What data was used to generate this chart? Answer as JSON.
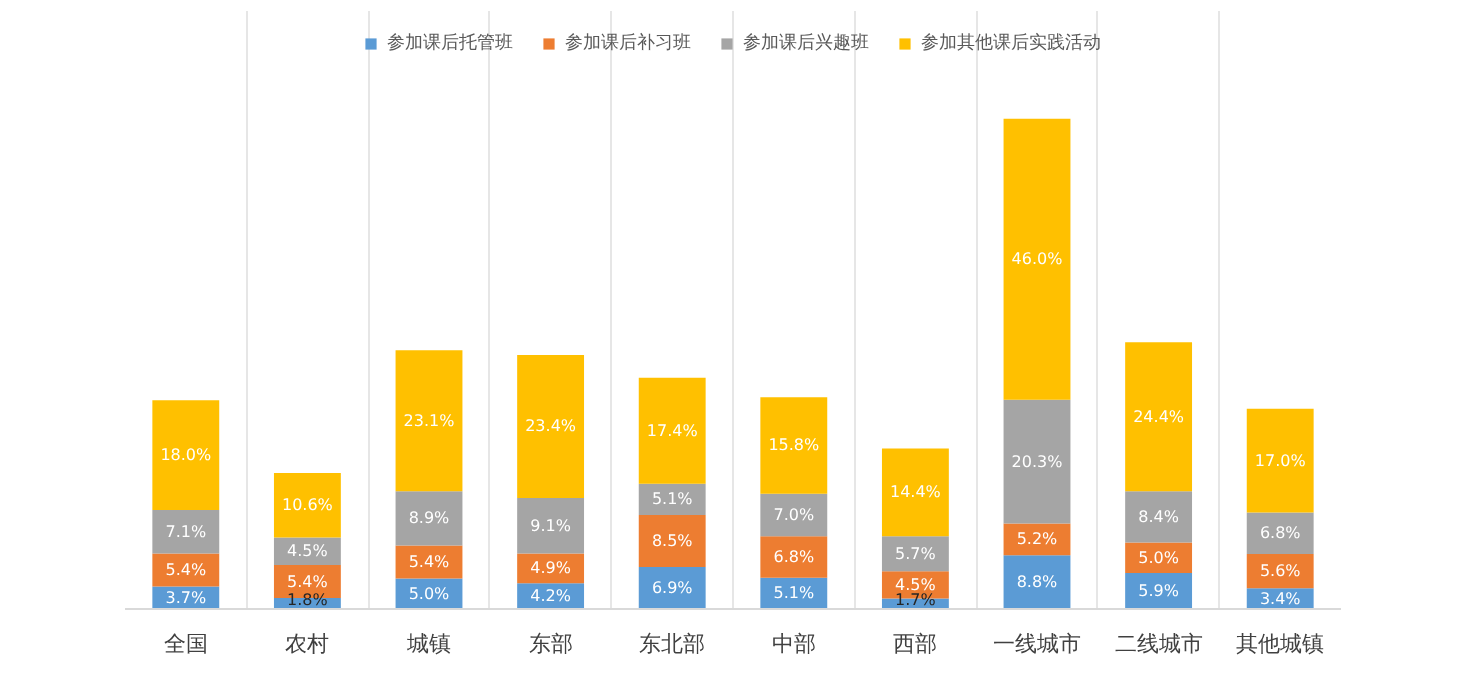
{
  "chart_data": {
    "type": "bar",
    "stacked": true,
    "legend": "top",
    "grid": "x",
    "categories": [
      "全国",
      "农村",
      "城镇",
      "东部",
      "东北部",
      "中部",
      "西部",
      "一线城市",
      "二线城市",
      "其他城镇"
    ],
    "series": [
      {
        "name": "参加课后托管班",
        "color": "#5b9bd5",
        "values": [
          3.7,
          1.8,
          5.0,
          4.2,
          6.9,
          5.1,
          1.7,
          8.8,
          5.9,
          3.4
        ],
        "value_labels": [
          "3.7%",
          "1.8%",
          "5.0%",
          "4.2%",
          "6.9%",
          "5.1%",
          "1.7%",
          "8.8%",
          "5.9%",
          "3.4%"
        ]
      },
      {
        "name": "参加课后补习班",
        "color": "#ed7d31",
        "values": [
          5.4,
          5.4,
          5.4,
          4.9,
          8.5,
          6.8,
          4.5,
          5.2,
          5.0,
          5.6
        ],
        "value_labels": [
          "5.4%",
          "5.4%",
          "5.4%",
          "4.9%",
          "8.5%",
          "6.8%",
          "4.5%",
          "5.2%",
          "5.0%",
          "5.6%"
        ]
      },
      {
        "name": "参加课后兴趣班",
        "color": "#a5a5a5",
        "values": [
          7.1,
          4.5,
          8.9,
          9.1,
          5.1,
          7.0,
          5.7,
          20.3,
          8.4,
          6.8
        ],
        "value_labels": [
          "7.1%",
          "4.5%",
          "8.9%",
          "9.1%",
          "5.1%",
          "7.0%",
          "5.7%",
          "20.3%",
          "8.4%",
          "6.8%"
        ]
      },
      {
        "name": "参加其他课后实践活动",
        "color": "#ffc000",
        "values": [
          18.0,
          10.6,
          23.1,
          23.4,
          17.4,
          15.8,
          14.4,
          46.0,
          24.4,
          17.0
        ],
        "value_labels": [
          "18.0%",
          "10.6%",
          "23.1%",
          "23.4%",
          "17.4%",
          "15.8%",
          "14.4%",
          "46.0%",
          "24.4%",
          "17.0%"
        ]
      }
    ]
  }
}
